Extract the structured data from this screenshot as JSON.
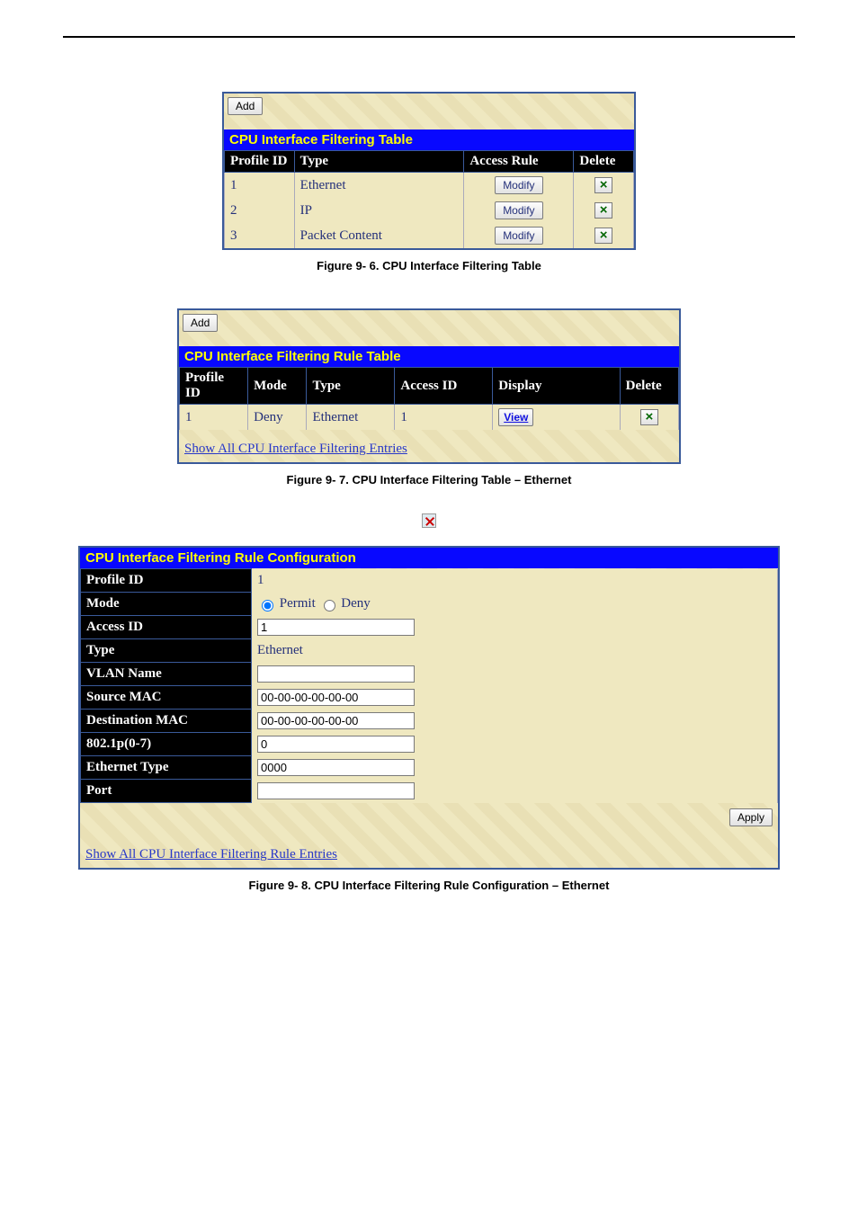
{
  "buttons": {
    "add": "Add",
    "modify": "Modify",
    "view": "View",
    "apply": "Apply",
    "deleteGlyph": "×"
  },
  "colors": {
    "headerBg": "#0808ff",
    "headerFg": "#ffff00",
    "panelBg": "#efe8c0",
    "panelBorder": "#3a5a9a",
    "thBg": "#000000",
    "thFg": "#ffffff",
    "linkColor": "#2838c8",
    "cellText": "#24307a"
  },
  "table1": {
    "title": "CPU Interface Filtering Table",
    "caption": "Figure 9- 6. CPU Interface Filtering Table",
    "columns": [
      "Profile ID",
      "Type",
      "Access Rule",
      "Delete"
    ],
    "colWidths": [
      "70px",
      "170px",
      "110px",
      "60px"
    ],
    "rows": [
      {
        "id": "1",
        "type": "Ethernet"
      },
      {
        "id": "2",
        "type": "IP"
      },
      {
        "id": "3",
        "type": "Packet Content"
      }
    ]
  },
  "table2": {
    "title": "CPU Interface Filtering Rule Table",
    "caption": "Figure 9- 7. CPU Interface Filtering Table – Ethernet",
    "columns": [
      "Profile ID",
      "Mode",
      "Type",
      "Access ID",
      "Display",
      "Delete"
    ],
    "colWidths": [
      "70px",
      "60px",
      "90px",
      "100px",
      "130px",
      "60px"
    ],
    "rows": [
      {
        "id": "1",
        "mode": "Deny",
        "type": "Ethernet",
        "access": "1"
      }
    ],
    "link": "Show All CPU Interface Filtering Entries"
  },
  "form": {
    "title": "CPU Interface Filtering Rule Configuration",
    "caption": "Figure 9- 8. CPU Interface Filtering Rule Configuration – Ethernet",
    "fields": [
      {
        "label": "Profile ID",
        "kind": "text",
        "value": "1"
      },
      {
        "label": "Mode",
        "kind": "radio",
        "options": [
          "Permit",
          "Deny"
        ],
        "selected": "Permit"
      },
      {
        "label": "Access ID",
        "kind": "input",
        "value": "1"
      },
      {
        "label": "Type",
        "kind": "text",
        "value": "Ethernet"
      },
      {
        "label": "VLAN Name",
        "kind": "input",
        "value": ""
      },
      {
        "label": "Source MAC",
        "kind": "input",
        "value": "00-00-00-00-00-00"
      },
      {
        "label": "Destination MAC",
        "kind": "input",
        "value": "00-00-00-00-00-00"
      },
      {
        "label": "802.1p(0-7)",
        "kind": "input",
        "value": "0"
      },
      {
        "label": "Ethernet Type",
        "kind": "input",
        "value": "0000"
      },
      {
        "label": "Port",
        "kind": "input",
        "value": ""
      }
    ],
    "link": "Show All CPU Interface Filtering Rule Entries"
  }
}
